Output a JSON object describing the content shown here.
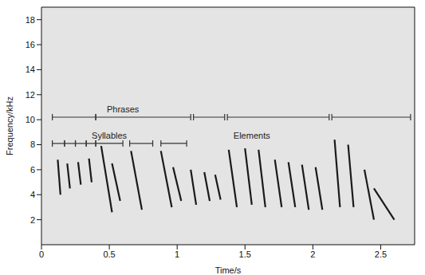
{
  "chart_data": {
    "type": "line",
    "xlabel": "Time/s",
    "ylabel": "Frequency/kHz",
    "xlim": [
      0,
      2.75
    ],
    "xticks": [
      0,
      0.5,
      1,
      1.5,
      2,
      2.5
    ],
    "ylim": [
      0,
      19
    ],
    "yticks": [
      2,
      4,
      6,
      8,
      10,
      12,
      14,
      16,
      18
    ],
    "grid": false,
    "color": "#1a1a1a",
    "elements": [
      {
        "x": [
          0.12,
          0.14
        ],
        "y": [
          6.8,
          4.0
        ]
      },
      {
        "x": [
          0.19,
          0.21
        ],
        "y": [
          6.5,
          4.5
        ]
      },
      {
        "x": [
          0.27,
          0.29
        ],
        "y": [
          6.6,
          4.8
        ]
      },
      {
        "x": [
          0.35,
          0.37
        ],
        "y": [
          6.9,
          5.0
        ]
      },
      {
        "x": [
          0.44,
          0.52
        ],
        "y": [
          7.9,
          2.6
        ]
      },
      {
        "x": [
          0.52,
          0.58
        ],
        "y": [
          6.5,
          3.5
        ]
      },
      {
        "x": [
          0.66,
          0.74
        ],
        "y": [
          7.5,
          2.8
        ]
      },
      {
        "x": [
          0.88,
          0.96
        ],
        "y": [
          7.5,
          3.0
        ]
      },
      {
        "x": [
          0.97,
          1.03
        ],
        "y": [
          6.2,
          3.5
        ]
      },
      {
        "x": [
          1.1,
          1.14
        ],
        "y": [
          6.0,
          3.2
        ]
      },
      {
        "x": [
          1.2,
          1.24
        ],
        "y": [
          5.8,
          3.5
        ]
      },
      {
        "x": [
          1.28,
          1.32
        ],
        "y": [
          5.6,
          3.6
        ]
      },
      {
        "x": [
          1.38,
          1.44
        ],
        "y": [
          7.6,
          3.0
        ]
      },
      {
        "x": [
          1.5,
          1.55
        ],
        "y": [
          7.7,
          3.2
        ]
      },
      {
        "x": [
          1.6,
          1.65
        ],
        "y": [
          7.6,
          3.0
        ]
      },
      {
        "x": [
          1.72,
          1.77
        ],
        "y": [
          6.8,
          3.0
        ]
      },
      {
        "x": [
          1.82,
          1.87
        ],
        "y": [
          6.6,
          3.0
        ]
      },
      {
        "x": [
          1.92,
          1.97
        ],
        "y": [
          6.4,
          2.8
        ]
      },
      {
        "x": [
          2.02,
          2.07
        ],
        "y": [
          6.2,
          2.8
        ]
      },
      {
        "x": [
          2.16,
          2.2
        ],
        "y": [
          8.4,
          3.0
        ]
      },
      {
        "x": [
          2.26,
          2.3
        ],
        "y": [
          8.0,
          3.0
        ]
      },
      {
        "x": [
          2.38,
          2.45
        ],
        "y": [
          6.0,
          2.0
        ]
      },
      {
        "x": [
          2.45,
          2.6
        ],
        "y": [
          4.5,
          2.0
        ]
      }
    ],
    "brackets": [
      {
        "label": "Phrases",
        "label_x": 0.6,
        "y": 10.2,
        "color": "#333333",
        "segments": [
          [
            0.08,
            0.4
          ],
          [
            0.4,
            1.1
          ],
          [
            1.12,
            1.35
          ],
          [
            1.37,
            2.12
          ],
          [
            2.14,
            2.72
          ]
        ]
      },
      {
        "label": "Syllables",
        "label_x": 0.5,
        "y": 8.1,
        "color": "#333333",
        "segments": [
          [
            0.08,
            0.17
          ],
          [
            0.17,
            0.25
          ],
          [
            0.25,
            0.33
          ],
          [
            0.33,
            0.4
          ],
          [
            0.4,
            0.6
          ],
          [
            0.65,
            0.82
          ],
          [
            0.88,
            1.07
          ]
        ]
      },
      {
        "label": "Elements",
        "label_x": 1.55,
        "y": 8.1,
        "color": "#333333",
        "segments": []
      }
    ]
  }
}
